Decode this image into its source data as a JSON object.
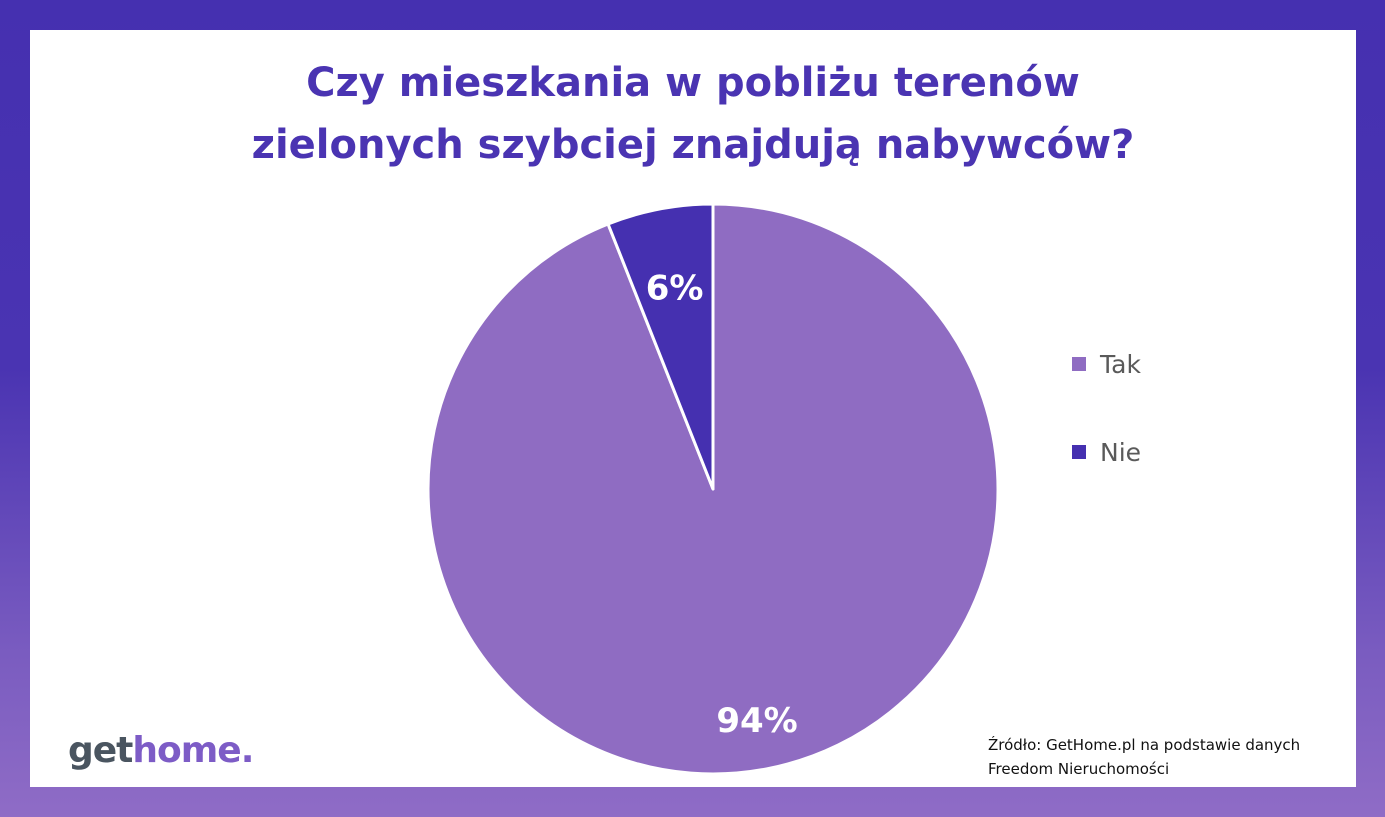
{
  "chart_data": {
    "type": "pie",
    "title_lines": [
      "Czy mieszkania w pobliżu terenów",
      "zielonych szybciej znajdują nabywców?"
    ],
    "categories": [
      "Tak",
      "Nie"
    ],
    "values": [
      94,
      6
    ],
    "labels": [
      "94%",
      "6%"
    ],
    "colors": [
      "#8f6cc2",
      "#4530b0"
    ],
    "start_angle_deg": 0,
    "direction": "clockwise",
    "legend": "right"
  },
  "source": {
    "line1": "Źródło: GetHome.pl na podstawie danych",
    "line2": "Freedom Nieruchomości"
  },
  "logo": {
    "part1": "get",
    "part2": "home."
  }
}
